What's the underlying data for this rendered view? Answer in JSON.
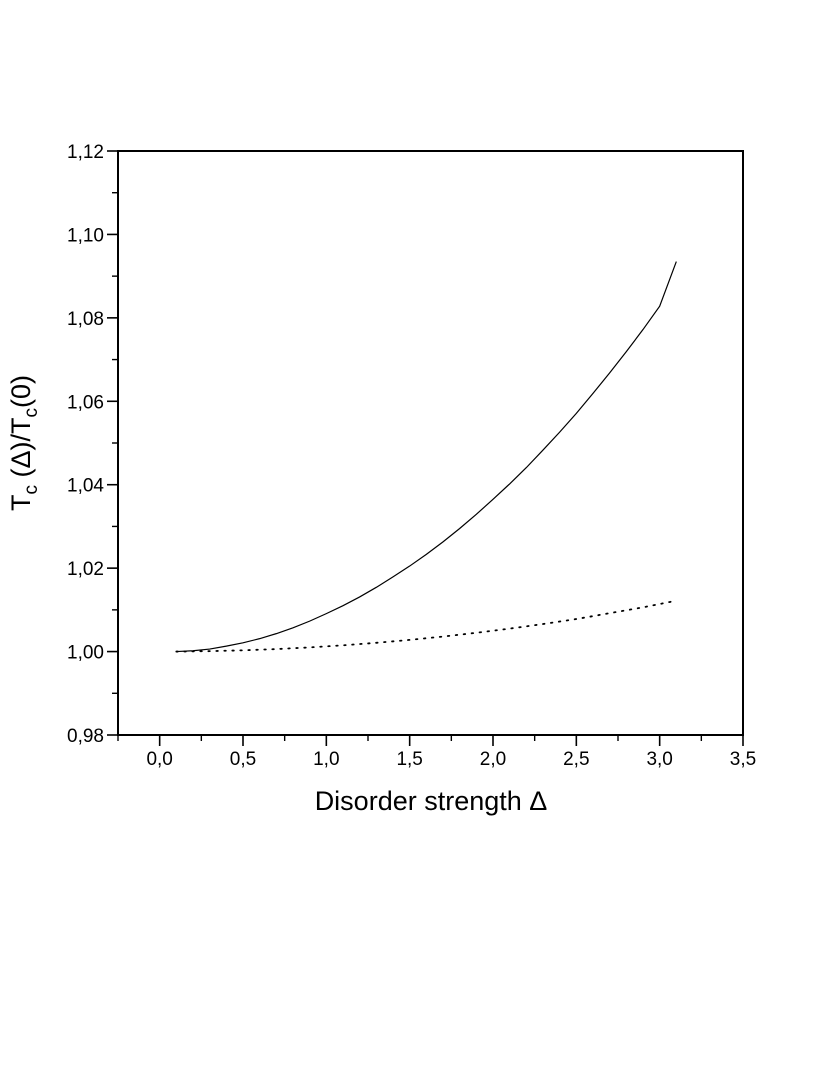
{
  "chart_data": {
    "type": "line",
    "title": "",
    "xlabel": "Disorder strength Δ",
    "ylabel": {
      "main": "T",
      "sub1": "c",
      "mid": " (Δ)/T",
      "sub2": "c",
      "tail": "(0)"
    },
    "xlim": [
      -0.25,
      3.5
    ],
    "ylim": [
      0.98,
      1.12
    ],
    "x_ticks": [
      0.0,
      0.5,
      1.0,
      1.5,
      2.0,
      2.5,
      3.0,
      3.5
    ],
    "x_tick_labels": [
      "0,0",
      "0,5",
      "1,0",
      "1,5",
      "2,0",
      "2,5",
      "3,0",
      "3,5"
    ],
    "y_ticks": [
      0.98,
      1.0,
      1.02,
      1.04,
      1.06,
      1.08,
      1.1,
      1.12
    ],
    "y_tick_labels": [
      "0,98",
      "1,00",
      "1,02",
      "1,04",
      "1,06",
      "1,08",
      "1,10",
      "1,12"
    ],
    "grid": false,
    "legend": "none",
    "series": [
      {
        "style": "solid",
        "color": "#000000",
        "x": [
          0.1,
          0.2,
          0.3,
          0.4,
          0.5,
          0.6,
          0.7,
          0.8,
          0.9,
          1.0,
          1.1,
          1.2,
          1.3,
          1.4,
          1.5,
          1.6,
          1.7,
          1.8,
          1.9,
          2.0,
          2.1,
          2.2,
          2.3,
          2.4,
          2.5,
          2.6,
          2.7,
          2.8,
          2.9,
          3.0,
          3.1
        ],
        "y": [
          1.0,
          1.0002,
          1.0006,
          1.0013,
          1.0021,
          1.0031,
          1.0043,
          1.0057,
          1.0073,
          1.0091,
          1.011,
          1.0131,
          1.0154,
          1.0179,
          1.0205,
          1.0233,
          1.0263,
          1.0295,
          1.0329,
          1.0365,
          1.0402,
          1.0441,
          1.0483,
          1.0526,
          1.0571,
          1.0619,
          1.0668,
          1.0719,
          1.0772,
          1.0828,
          1.0935
        ]
      },
      {
        "style": "dotted",
        "color": "#000000",
        "x": [
          0.1,
          0.3,
          0.5,
          0.7,
          0.9,
          1.1,
          1.3,
          1.5,
          1.7,
          1.9,
          2.1,
          2.3,
          2.5,
          2.7,
          2.9,
          3.1
        ],
        "y": [
          1.0,
          1.0001,
          1.0003,
          1.0006,
          1.001,
          1.0015,
          1.0021,
          1.0028,
          1.0036,
          1.0045,
          1.0055,
          1.0066,
          1.0078,
          1.0092,
          1.0106,
          1.0122
        ]
      }
    ]
  }
}
